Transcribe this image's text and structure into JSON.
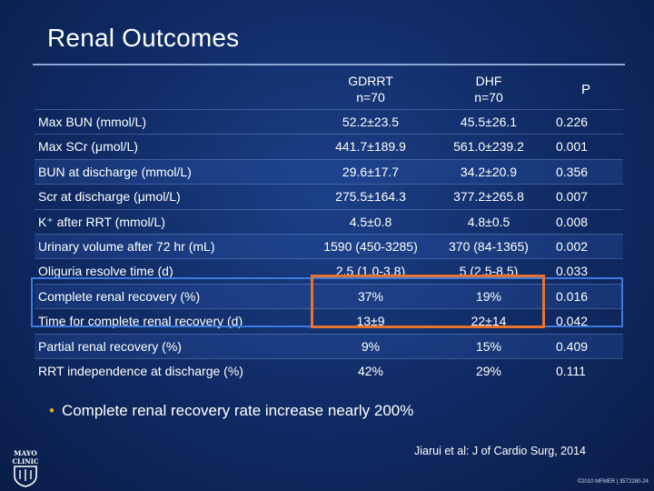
{
  "title": "Renal Outcomes",
  "columns": {
    "c1_name": "GDRRT",
    "c1_n": "n=70",
    "c2_name": "DHF",
    "c2_n": "n=70",
    "c3_name": "P"
  },
  "rows": [
    {
      "label": "Max BUN (mmol/L)",
      "v1": "52.2±23.5",
      "v2": "45.5±26.1",
      "p": "0.226"
    },
    {
      "label": "Max SCr (μmol/L)",
      "v1": "441.7±189.9",
      "v2": "561.0±239.2",
      "p": "0.001"
    },
    {
      "label": "BUN at discharge (mmol/L)",
      "v1": "29.6±17.7",
      "v2": "34.2±20.9",
      "p": "0.356"
    },
    {
      "label": "Scr at discharge (μmol/L)",
      "v1": "275.5±164.3",
      "v2": "377.2±265.8",
      "p": "0.007"
    },
    {
      "label": "K⁺ after RRT (mmol/L)",
      "v1": "4.5±0.8",
      "v2": "4.8±0.5",
      "p": "0.008"
    },
    {
      "label": "Urinary volume after 72 hr (mL)",
      "v1": "1590 (450-3285)",
      "v2": "370 (84-1365)",
      "p": "0.002"
    },
    {
      "label": "Oliguria resolve time (d)",
      "v1": "2.5 (1.0-3.8)",
      "v2": "5 (2.5-8.5)",
      "p": "0.033"
    },
    {
      "label": "Complete renal recovery (%)",
      "v1": "37%",
      "v2": "19%",
      "p": "0.016"
    },
    {
      "label": "Time for complete renal recovery (d)",
      "v1": "13±9",
      "v2": "22±14",
      "p": "0.042"
    },
    {
      "label": "Partial renal recovery (%)",
      "v1": "9%",
      "v2": "15%",
      "p": "0.409"
    },
    {
      "label": "RRT independence at discharge (%)",
      "v1": "42%",
      "v2": "29%",
      "p": "0.111"
    }
  ],
  "bullet": "Complete renal recovery rate increase nearly 200%",
  "citation": "Jiarui et al: J of Cardio Surg, 2014",
  "footer_code": "©2010 MFMER | 3572280-24",
  "logo_text": "MAYO CLINIC",
  "colors": {
    "background": "#0f2a63",
    "highlight_blue": "#3d7be0",
    "highlight_orange": "#e8732d",
    "bullet": "#e8a33a"
  }
}
